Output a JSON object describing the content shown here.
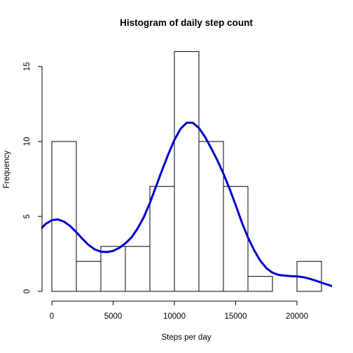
{
  "chart_data": {
    "type": "bar",
    "title": "Histogram of daily step count",
    "xlabel": "Steps per day",
    "ylabel": "Frequency",
    "xlim": [
      0,
      23000
    ],
    "ylim": [
      0,
      16
    ],
    "bins": [
      {
        "start": 0,
        "end": 2000,
        "count": 10
      },
      {
        "start": 2000,
        "end": 4000,
        "count": 2
      },
      {
        "start": 4000,
        "end": 6000,
        "count": 3
      },
      {
        "start": 6000,
        "end": 8000,
        "count": 3
      },
      {
        "start": 8000,
        "end": 10000,
        "count": 7
      },
      {
        "start": 10000,
        "end": 12000,
        "count": 16
      },
      {
        "start": 12000,
        "end": 14000,
        "count": 10
      },
      {
        "start": 14000,
        "end": 16000,
        "count": 7
      },
      {
        "start": 16000,
        "end": 18000,
        "count": 1
      },
      {
        "start": 18000,
        "end": 20000,
        "count": 0
      },
      {
        "start": 20000,
        "end": 22000,
        "count": 2
      }
    ],
    "x_ticks": [
      {
        "value": 0,
        "label": "0"
      },
      {
        "value": 5000,
        "label": "5000"
      },
      {
        "value": 10000,
        "label": "10000"
      },
      {
        "value": 15000,
        "label": "15000"
      },
      {
        "value": 20000,
        "label": "20000"
      }
    ],
    "y_ticks": [
      {
        "value": 0,
        "label": "0"
      },
      {
        "value": 5,
        "label": "5"
      },
      {
        "value": 10,
        "label": "10"
      },
      {
        "value": 15,
        "label": "15"
      }
    ],
    "density_curve": {
      "color": "#0000CD",
      "points": [
        [
          -1000,
          4.1
        ],
        [
          -500,
          4.5
        ],
        [
          0,
          4.75
        ],
        [
          500,
          4.8
        ],
        [
          1000,
          4.65
        ],
        [
          1500,
          4.35
        ],
        [
          2000,
          3.95
        ],
        [
          2500,
          3.5
        ],
        [
          3000,
          3.1
        ],
        [
          3500,
          2.8
        ],
        [
          4000,
          2.65
        ],
        [
          4500,
          2.62
        ],
        [
          5000,
          2.7
        ],
        [
          5500,
          2.9
        ],
        [
          6000,
          3.2
        ],
        [
          6500,
          3.6
        ],
        [
          7000,
          4.2
        ],
        [
          7500,
          4.95
        ],
        [
          8000,
          5.9
        ],
        [
          8500,
          7.0
        ],
        [
          9000,
          8.1
        ],
        [
          9500,
          9.15
        ],
        [
          10000,
          10.1
        ],
        [
          10500,
          10.85
        ],
        [
          11000,
          11.25
        ],
        [
          11500,
          11.25
        ],
        [
          12000,
          10.9
        ],
        [
          12500,
          10.3
        ],
        [
          13000,
          9.55
        ],
        [
          13500,
          8.75
        ],
        [
          14000,
          7.85
        ],
        [
          14500,
          6.85
        ],
        [
          15000,
          5.75
        ],
        [
          15500,
          4.6
        ],
        [
          16000,
          3.6
        ],
        [
          16500,
          2.75
        ],
        [
          17000,
          2.05
        ],
        [
          17500,
          1.55
        ],
        [
          18000,
          1.25
        ],
        [
          18500,
          1.1
        ],
        [
          19000,
          1.05
        ],
        [
          19500,
          1.02
        ],
        [
          20000,
          1.0
        ],
        [
          20500,
          0.95
        ],
        [
          21000,
          0.85
        ],
        [
          21500,
          0.72
        ],
        [
          22000,
          0.58
        ],
        [
          22500,
          0.45
        ],
        [
          23000,
          0.32
        ]
      ]
    }
  }
}
